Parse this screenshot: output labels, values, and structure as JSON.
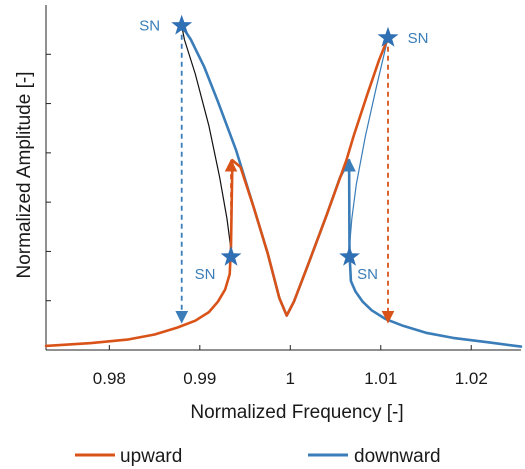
{
  "chart_data": {
    "type": "line",
    "title": "",
    "xlabel": "Normalized Frequency [-]",
    "ylabel": "Normalized Amplitude [-]",
    "xlim": [
      0.973,
      1.0255
    ],
    "ylim": [
      0,
      1
    ],
    "x_ticks": [
      0.98,
      0.99,
      1,
      1.01,
      1.02
    ],
    "x_tick_labels": [
      "0.98",
      "0.99",
      "1",
      "1.01",
      "1.02"
    ],
    "y_tick_labels": [],
    "grid": false,
    "legend_position": "bottom",
    "series": [
      {
        "name": "upward",
        "color": "#D95319",
        "points": [
          [
            0.973,
            0.012
          ],
          [
            0.978,
            0.02
          ],
          [
            0.982,
            0.03
          ],
          [
            0.985,
            0.045
          ],
          [
            0.9875,
            0.065
          ],
          [
            0.9895,
            0.085
          ],
          [
            0.991,
            0.11
          ],
          [
            0.992,
            0.14
          ],
          [
            0.9928,
            0.175
          ],
          [
            0.9933,
            0.22
          ],
          [
            0.99345,
            0.3
          ],
          [
            0.9936,
            0.55
          ],
          [
            0.9945,
            0.53
          ],
          [
            0.996,
            0.41
          ],
          [
            0.9975,
            0.28
          ],
          [
            0.9988,
            0.15
          ],
          [
            0.9996,
            0.1
          ],
          [
            1.0,
            0.12
          ],
          [
            1.0004,
            0.14
          ],
          [
            1.002,
            0.25
          ],
          [
            1.004,
            0.39
          ],
          [
            1.0062,
            0.55
          ],
          [
            1.007,
            0.62
          ],
          [
            1.0085,
            0.74
          ],
          [
            1.0098,
            0.84
          ],
          [
            1.0108,
            0.905
          ]
        ]
      },
      {
        "name": "downward",
        "color": "#3A7DB8",
        "points": [
          [
            1.0255,
            0.01
          ],
          [
            1.022,
            0.022
          ],
          [
            1.018,
            0.035
          ],
          [
            1.015,
            0.05
          ],
          [
            1.0125,
            0.07
          ],
          [
            1.0105,
            0.09
          ],
          [
            1.009,
            0.115
          ],
          [
            1.008,
            0.14
          ],
          [
            1.0072,
            0.17
          ],
          [
            1.0067,
            0.2
          ],
          [
            1.00655,
            0.28
          ],
          [
            1.0065,
            0.55
          ],
          [
            1.0055,
            0.5
          ],
          [
            1.004,
            0.39
          ],
          [
            1.002,
            0.25
          ],
          [
            1.0004,
            0.14
          ],
          [
            1.0,
            0.12
          ],
          [
            0.9996,
            0.1
          ],
          [
            0.9988,
            0.15
          ],
          [
            0.9975,
            0.28
          ],
          [
            0.996,
            0.41
          ],
          [
            0.994,
            0.58
          ],
          [
            0.992,
            0.72
          ],
          [
            0.9905,
            0.82
          ],
          [
            0.989,
            0.9
          ],
          [
            0.988,
            0.94
          ]
        ]
      }
    ],
    "unstable_branches": [
      {
        "color": "#111111",
        "points": [
          [
            0.988,
            0.94
          ],
          [
            0.9883,
            0.9
          ],
          [
            0.9895,
            0.8
          ],
          [
            0.991,
            0.65
          ],
          [
            0.9922,
            0.5
          ],
          [
            0.993,
            0.38
          ],
          [
            0.9934,
            0.3
          ],
          [
            0.99345,
            0.27
          ]
        ]
      },
      {
        "color": "#3A7DB8",
        "points": [
          [
            1.0108,
            0.905
          ],
          [
            1.0103,
            0.85
          ],
          [
            1.0095,
            0.76
          ],
          [
            1.0083,
            0.62
          ],
          [
            1.0073,
            0.48
          ],
          [
            1.0068,
            0.38
          ],
          [
            1.00655,
            0.3
          ],
          [
            1.00655,
            0.27
          ]
        ]
      }
    ],
    "saddle_nodes": [
      [
        0.988,
        0.94
      ],
      [
        0.99345,
        0.27
      ],
      [
        1.00655,
        0.27
      ],
      [
        1.0108,
        0.905
      ]
    ],
    "annotations": [
      {
        "text": "SN",
        "color": "#3A7DB8",
        "anchor": "upper-left-star"
      },
      {
        "text": "SN",
        "color": "#3A7DB8",
        "anchor": "lower-left-star"
      },
      {
        "text": "SN",
        "color": "#3A7DB8",
        "anchor": "lower-right-star"
      },
      {
        "text": "SN",
        "color": "#3A7DB8",
        "anchor": "upper-right-star"
      }
    ],
    "jumps": [
      {
        "color": "#3A7DB8",
        "from": [
          0.988,
          0.94
        ],
        "to": [
          0.988,
          0.08
        ],
        "direction": "down"
      },
      {
        "color": "#D95319",
        "from": [
          0.99345,
          0.26
        ],
        "to": [
          0.99345,
          0.55
        ],
        "direction": "up"
      },
      {
        "color": "#3A7DB8",
        "from": [
          1.00655,
          0.26
        ],
        "to": [
          1.00655,
          0.55
        ],
        "direction": "up"
      },
      {
        "color": "#D95319",
        "from": [
          1.0108,
          0.905
        ],
        "to": [
          1.0108,
          0.08
        ],
        "direction": "down"
      }
    ]
  },
  "legend": {
    "items": [
      {
        "label": "upward",
        "color": "#D95319"
      },
      {
        "label": "downward",
        "color": "#3A7DB8"
      }
    ]
  }
}
